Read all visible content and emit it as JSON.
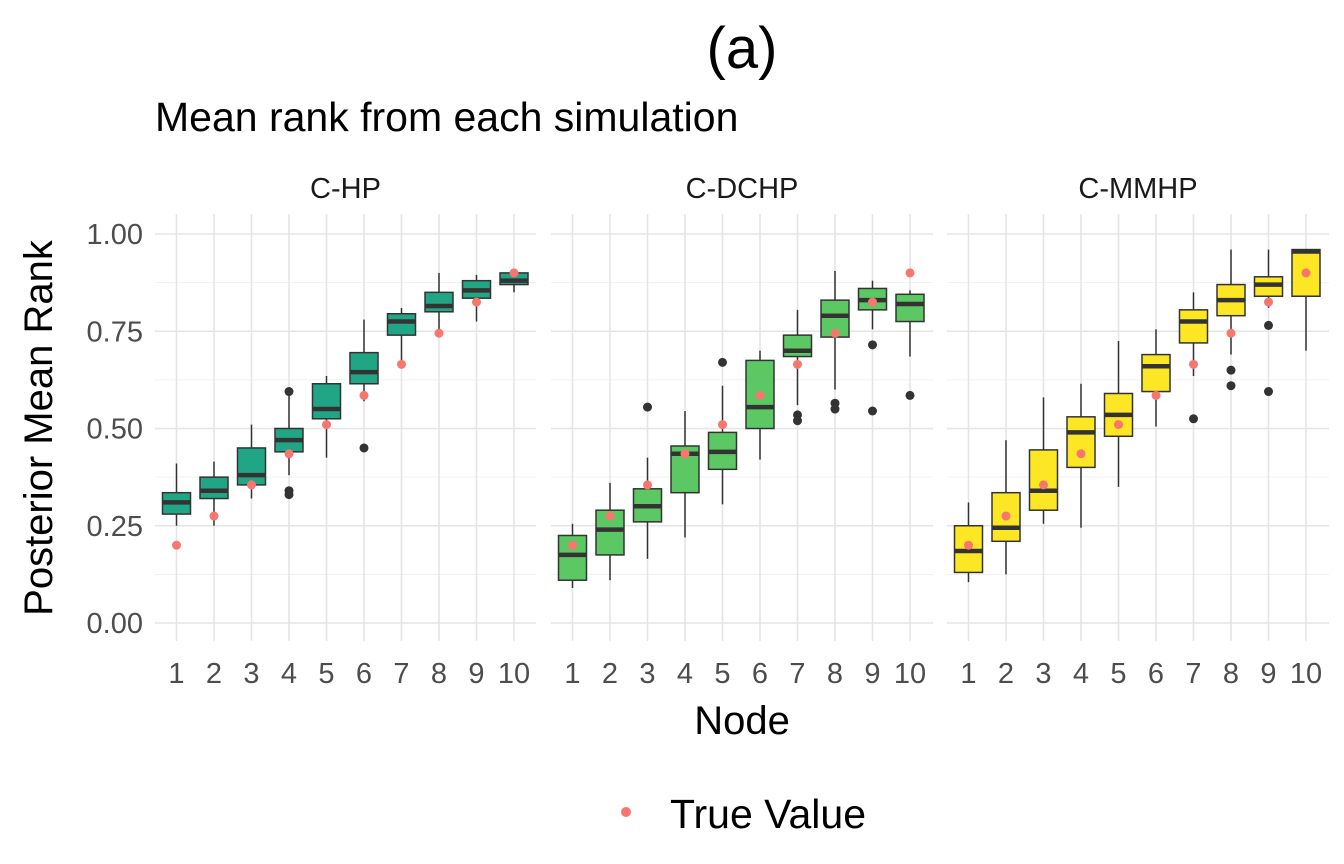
{
  "chart_data": {
    "type": "box",
    "tag": "(a)",
    "title": "Mean rank from each simulation",
    "xlabel": "Node",
    "ylabel": "Posterior Mean Rank",
    "ylim": [
      -0.04,
      1.05
    ],
    "yticks": [
      0.0,
      0.25,
      0.5,
      0.75,
      1.0
    ],
    "ytick_labels": [
      "0.00",
      "0.25",
      "0.50",
      "0.75",
      "1.00"
    ],
    "categories": [
      "1",
      "2",
      "3",
      "4",
      "5",
      "6",
      "7",
      "8",
      "9",
      "10"
    ],
    "grid": true,
    "legend": {
      "position": "bottom",
      "label": "True Value",
      "color": "#f8766d"
    },
    "colors": {
      "C-HP": "#21a685",
      "C-DCHP": "#5bc863",
      "C-MMHP": "#fde725",
      "outline": "#333333",
      "outlier": "#333333",
      "true_point": "#f8766d"
    },
    "panels": [
      {
        "name": "C-HP",
        "boxes": [
          {
            "lo": 0.25,
            "q1": 0.28,
            "med": 0.31,
            "q3": 0.335,
            "hi": 0.41,
            "out": []
          },
          {
            "lo": 0.25,
            "q1": 0.32,
            "med": 0.34,
            "q3": 0.375,
            "hi": 0.415,
            "out": []
          },
          {
            "lo": 0.32,
            "q1": 0.355,
            "med": 0.38,
            "q3": 0.45,
            "hi": 0.51,
            "out": []
          },
          {
            "lo": 0.38,
            "q1": 0.44,
            "med": 0.47,
            "q3": 0.5,
            "hi": 0.585,
            "out": [
              0.595,
              0.34,
              0.33
            ]
          },
          {
            "lo": 0.425,
            "q1": 0.525,
            "med": 0.55,
            "q3": 0.615,
            "hi": 0.635,
            "out": []
          },
          {
            "lo": 0.57,
            "q1": 0.615,
            "med": 0.645,
            "q3": 0.695,
            "hi": 0.78,
            "out": [
              0.45
            ]
          },
          {
            "lo": 0.67,
            "q1": 0.74,
            "med": 0.775,
            "q3": 0.795,
            "hi": 0.81,
            "out": []
          },
          {
            "lo": 0.75,
            "q1": 0.8,
            "med": 0.815,
            "q3": 0.85,
            "hi": 0.9,
            "out": []
          },
          {
            "lo": 0.775,
            "q1": 0.835,
            "med": 0.855,
            "q3": 0.88,
            "hi": 0.895,
            "out": []
          },
          {
            "lo": 0.85,
            "q1": 0.87,
            "med": 0.88,
            "q3": 0.9,
            "hi": 0.905,
            "out": []
          }
        ],
        "true_values": [
          0.2,
          0.275,
          0.355,
          0.435,
          0.51,
          0.585,
          0.665,
          0.745,
          0.825,
          0.9
        ]
      },
      {
        "name": "C-DCHP",
        "boxes": [
          {
            "lo": 0.09,
            "q1": 0.11,
            "med": 0.175,
            "q3": 0.225,
            "hi": 0.255,
            "out": []
          },
          {
            "lo": 0.11,
            "q1": 0.175,
            "med": 0.24,
            "q3": 0.29,
            "hi": 0.36,
            "out": []
          },
          {
            "lo": 0.165,
            "q1": 0.26,
            "med": 0.3,
            "q3": 0.345,
            "hi": 0.425,
            "out": [
              0.555
            ]
          },
          {
            "lo": 0.22,
            "q1": 0.335,
            "med": 0.435,
            "q3": 0.455,
            "hi": 0.545,
            "out": []
          },
          {
            "lo": 0.305,
            "q1": 0.395,
            "med": 0.44,
            "q3": 0.49,
            "hi": 0.61,
            "out": [
              0.67
            ]
          },
          {
            "lo": 0.42,
            "q1": 0.5,
            "med": 0.555,
            "q3": 0.675,
            "hi": 0.7,
            "out": []
          },
          {
            "lo": 0.56,
            "q1": 0.685,
            "med": 0.7,
            "q3": 0.74,
            "hi": 0.805,
            "out": [
              0.535,
              0.52
            ]
          },
          {
            "lo": 0.6,
            "q1": 0.735,
            "med": 0.79,
            "q3": 0.83,
            "hi": 0.905,
            "out": [
              0.565,
              0.55
            ]
          },
          {
            "lo": 0.755,
            "q1": 0.805,
            "med": 0.83,
            "q3": 0.86,
            "hi": 0.88,
            "out": [
              0.715,
              0.545
            ]
          },
          {
            "lo": 0.685,
            "q1": 0.775,
            "med": 0.82,
            "q3": 0.845,
            "hi": 0.855,
            "out": [
              0.585
            ]
          }
        ],
        "true_values": [
          0.2,
          0.275,
          0.355,
          0.435,
          0.51,
          0.585,
          0.665,
          0.745,
          0.825,
          0.9
        ]
      },
      {
        "name": "C-MMHP",
        "boxes": [
          {
            "lo": 0.105,
            "q1": 0.13,
            "med": 0.185,
            "q3": 0.25,
            "hi": 0.31,
            "out": []
          },
          {
            "lo": 0.125,
            "q1": 0.21,
            "med": 0.245,
            "q3": 0.335,
            "hi": 0.47,
            "out": []
          },
          {
            "lo": 0.255,
            "q1": 0.29,
            "med": 0.34,
            "q3": 0.445,
            "hi": 0.58,
            "out": []
          },
          {
            "lo": 0.245,
            "q1": 0.4,
            "med": 0.49,
            "q3": 0.53,
            "hi": 0.615,
            "out": []
          },
          {
            "lo": 0.35,
            "q1": 0.48,
            "med": 0.535,
            "q3": 0.59,
            "hi": 0.725,
            "out": []
          },
          {
            "lo": 0.505,
            "q1": 0.595,
            "med": 0.66,
            "q3": 0.69,
            "hi": 0.755,
            "out": []
          },
          {
            "lo": 0.635,
            "q1": 0.72,
            "med": 0.775,
            "q3": 0.805,
            "hi": 0.85,
            "out": [
              0.525
            ]
          },
          {
            "lo": 0.69,
            "q1": 0.79,
            "med": 0.83,
            "q3": 0.87,
            "hi": 0.96,
            "out": [
              0.65,
              0.61
            ]
          },
          {
            "lo": 0.81,
            "q1": 0.84,
            "med": 0.87,
            "q3": 0.89,
            "hi": 0.96,
            "out": [
              0.765,
              0.595
            ]
          },
          {
            "lo": 0.7,
            "q1": 0.84,
            "med": 0.955,
            "q3": 0.96,
            "hi": 0.96,
            "out": []
          }
        ],
        "true_values": [
          0.2,
          0.275,
          0.355,
          0.435,
          0.51,
          0.585,
          0.665,
          0.745,
          0.825,
          0.9
        ]
      }
    ]
  }
}
